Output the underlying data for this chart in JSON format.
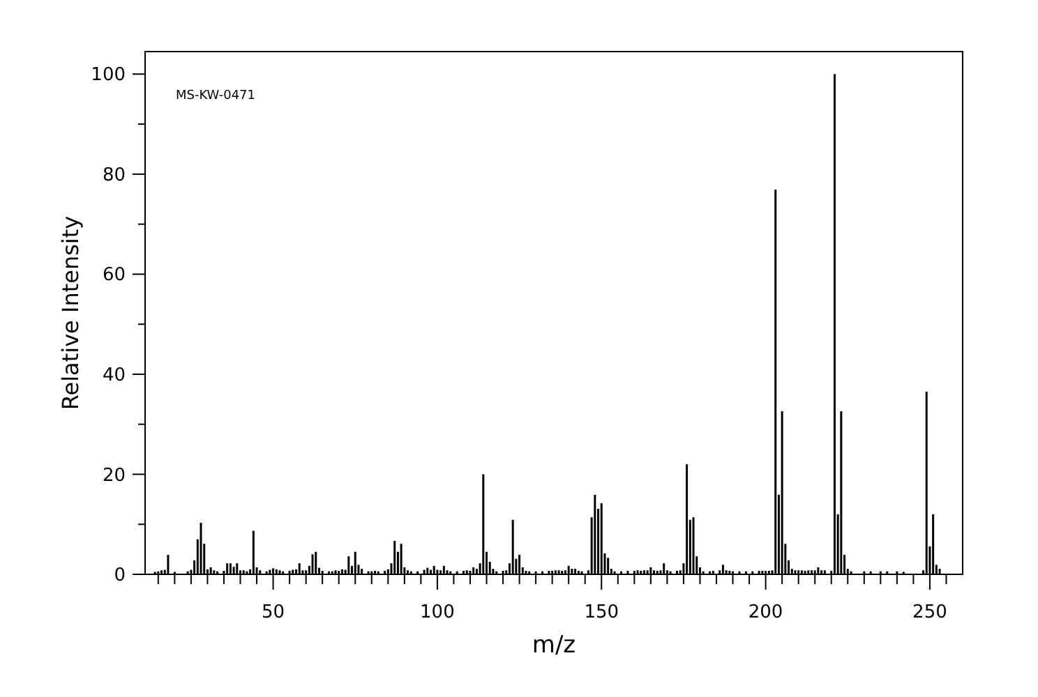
{
  "chart_data": {
    "type": "bar",
    "xlabel": "m/z",
    "ylabel": "Relative Intensity",
    "annotations": [
      "MS-KW-0471"
    ],
    "color": "#000000",
    "x": [
      14,
      15,
      16,
      17,
      18,
      20,
      24,
      25,
      26,
      27,
      28,
      29,
      30,
      31,
      32,
      33,
      35,
      36,
      37,
      38,
      39,
      40,
      41,
      42,
      43,
      44,
      45,
      46,
      48,
      49,
      50,
      51,
      52,
      53,
      55,
      56,
      57,
      58,
      59,
      60,
      61,
      62,
      63,
      64,
      65,
      67,
      68,
      69,
      70,
      71,
      72,
      73,
      74,
      75,
      76,
      77,
      79,
      80,
      81,
      82,
      84,
      85,
      86,
      87,
      88,
      89,
      90,
      91,
      92,
      94,
      96,
      97,
      98,
      99,
      100,
      101,
      102,
      103,
      104,
      106,
      108,
      109,
      110,
      111,
      112,
      113,
      114,
      115,
      116,
      117,
      118,
      120,
      121,
      122,
      123,
      124,
      125,
      126,
      127,
      128,
      130,
      132,
      134,
      135,
      136,
      137,
      138,
      139,
      140,
      141,
      142,
      143,
      144,
      146,
      147,
      148,
      149,
      150,
      151,
      152,
      153,
      154,
      156,
      158,
      160,
      161,
      162,
      163,
      164,
      165,
      166,
      167,
      168,
      169,
      170,
      171,
      173,
      174,
      175,
      176,
      177,
      178,
      179,
      180,
      181,
      183,
      184,
      186,
      187,
      188,
      189,
      190,
      192,
      194,
      196,
      198,
      199,
      200,
      201,
      202,
      203,
      204,
      205,
      206,
      207,
      208,
      209,
      210,
      211,
      212,
      213,
      214,
      215,
      216,
      217,
      218,
      220,
      221,
      222,
      223,
      224,
      225,
      226,
      230,
      232,
      235,
      237,
      240,
      242,
      248,
      249,
      250,
      251,
      252,
      253
    ],
    "values": [
      0.5,
      0.6,
      0.8,
      0.9,
      3.9,
      0.5,
      0.6,
      0.9,
      2.8,
      7,
      10.3,
      6.1,
      1,
      1.4,
      0.8,
      0.6,
      0.7,
      2.2,
      2.2,
      1.5,
      2.2,
      0.8,
      0.8,
      0.6,
      1,
      8.7,
      1.4,
      0.8,
      0.6,
      0.9,
      1.2,
      1,
      0.8,
      0.6,
      0.7,
      0.9,
      1,
      2.2,
      0.8,
      0.8,
      1.7,
      4,
      4.5,
      1.3,
      0.7,
      0.6,
      0.6,
      0.8,
      0.7,
      1,
      0.9,
      3.6,
      1.7,
      4.5,
      1.9,
      1.1,
      0.6,
      0.6,
      0.7,
      0.6,
      0.7,
      1,
      2.2,
      6.7,
      4.5,
      6.1,
      1.4,
      0.8,
      0.6,
      0.6,
      0.9,
      1.3,
      0.9,
      1.7,
      0.9,
      0.8,
      1.7,
      0.8,
      0.6,
      0.6,
      0.7,
      0.8,
      0.7,
      1.4,
      1.1,
      2.2,
      20,
      4.5,
      2.5,
      1.1,
      0.6,
      0.7,
      0.8,
      2.2,
      10.9,
      3.1,
      3.9,
      1.4,
      0.7,
      0.6,
      0.6,
      0.6,
      0.7,
      0.7,
      0.8,
      0.8,
      0.7,
      0.8,
      1.7,
      1.1,
      1.1,
      0.7,
      0.6,
      0.8,
      11.4,
      15.9,
      13.1,
      14.2,
      4.2,
      3.3,
      1.1,
      0.6,
      0.6,
      0.7,
      0.7,
      0.8,
      0.7,
      0.8,
      0.8,
      1.4,
      0.8,
      0.7,
      0.8,
      2.2,
      0.8,
      0.6,
      0.7,
      0.8,
      2.2,
      22,
      10.9,
      11.4,
      3.6,
      1.4,
      0.6,
      0.6,
      0.7,
      0.8,
      1.9,
      0.8,
      0.7,
      0.6,
      0.6,
      0.6,
      0.6,
      0.7,
      0.7,
      0.7,
      0.7,
      0.8,
      76.9,
      15.9,
      32.6,
      6.1,
      2.8,
      1.1,
      0.8,
      0.8,
      0.8,
      0.7,
      0.8,
      0.8,
      0.8,
      1.4,
      0.8,
      0.8,
      0.7,
      100,
      12,
      32.6,
      3.9,
      1.1,
      0.6,
      0.6,
      0.6,
      0.6,
      0.6,
      0.6,
      0.5,
      0.8,
      36.5,
      5.6,
      12,
      1.9,
      1.1
    ],
    "xlim": [
      11,
      260
    ],
    "ylim": [
      0,
      104.5
    ],
    "xticks": [
      {
        "value": 15,
        "label": null
      },
      {
        "value": 20,
        "label": null
      },
      {
        "value": 25,
        "label": null
      },
      {
        "value": 30,
        "label": null
      },
      {
        "value": 35,
        "label": null
      },
      {
        "value": 40,
        "label": null
      },
      {
        "value": 45,
        "label": null
      },
      50,
      {
        "value": 55,
        "label": null
      },
      {
        "value": 60,
        "label": null
      },
      {
        "value": 65,
        "label": null
      },
      {
        "value": 70,
        "label": null
      },
      {
        "value": 75,
        "label": null
      },
      {
        "value": 80,
        "label": null
      },
      {
        "value": 85,
        "label": null
      },
      {
        "value": 90,
        "label": null
      },
      {
        "value": 95,
        "label": null
      },
      100,
      {
        "value": 105,
        "label": null
      },
      {
        "value": 110,
        "label": null
      },
      {
        "value": 115,
        "label": null
      },
      {
        "value": 120,
        "label": null
      },
      {
        "value": 125,
        "label": null
      },
      {
        "value": 130,
        "label": null
      },
      {
        "value": 135,
        "label": null
      },
      {
        "value": 140,
        "label": null
      },
      {
        "value": 145,
        "label": null
      },
      150,
      {
        "value": 155,
        "label": null
      },
      {
        "value": 160,
        "label": null
      },
      {
        "value": 165,
        "label": null
      },
      {
        "value": 170,
        "label": null
      },
      {
        "value": 175,
        "label": null
      },
      {
        "value": 180,
        "label": null
      },
      {
        "value": 185,
        "label": null
      },
      {
        "value": 190,
        "label": null
      },
      {
        "value": 195,
        "label": null
      },
      200,
      {
        "value": 205,
        "label": null
      },
      {
        "value": 210,
        "label": null
      },
      {
        "value": 215,
        "label": null
      },
      {
        "value": 220,
        "label": null
      },
      {
        "value": 225,
        "label": null
      },
      {
        "value": 230,
        "label": null
      },
      {
        "value": 235,
        "label": null
      },
      {
        "value": 240,
        "label": null
      },
      {
        "value": 245,
        "label": null
      },
      250,
      {
        "value": 255,
        "label": null
      }
    ],
    "yticks": [
      0,
      {
        "value": 10,
        "label": null
      },
      20,
      {
        "value": 30,
        "label": null
      },
      40,
      {
        "value": 50,
        "label": null
      },
      60,
      {
        "value": 70,
        "label": null
      },
      80,
      {
        "value": 90,
        "label": null
      },
      100
    ]
  }
}
